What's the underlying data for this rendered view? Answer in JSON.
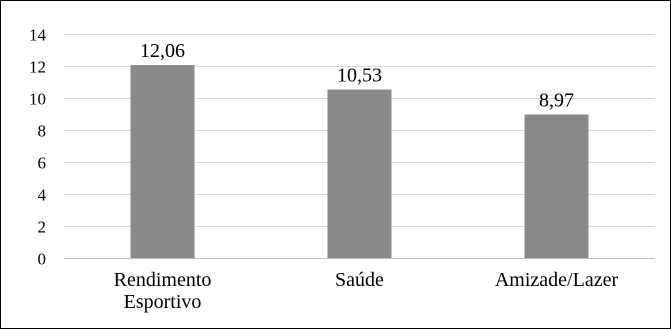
{
  "chart_data": {
    "type": "bar",
    "categories": [
      [
        "Rendimento",
        "Esportivo"
      ],
      [
        "Saúde"
      ],
      [
        "Amizade/Lazer"
      ]
    ],
    "values": [
      12.06,
      10.53,
      8.97
    ],
    "data_labels": [
      "12,06",
      "10,53",
      "8,97"
    ],
    "title": "",
    "xlabel": "",
    "ylabel": "",
    "ylim": [
      0,
      14
    ],
    "yticks": [
      0,
      2,
      4,
      6,
      8,
      10,
      12,
      14
    ],
    "grid": true,
    "legend": "none",
    "colors": {
      "bar": "#898989",
      "grid": "#d9d9d9",
      "axis": "#bfbfbf",
      "text": "#000000",
      "border": "#000000"
    }
  }
}
